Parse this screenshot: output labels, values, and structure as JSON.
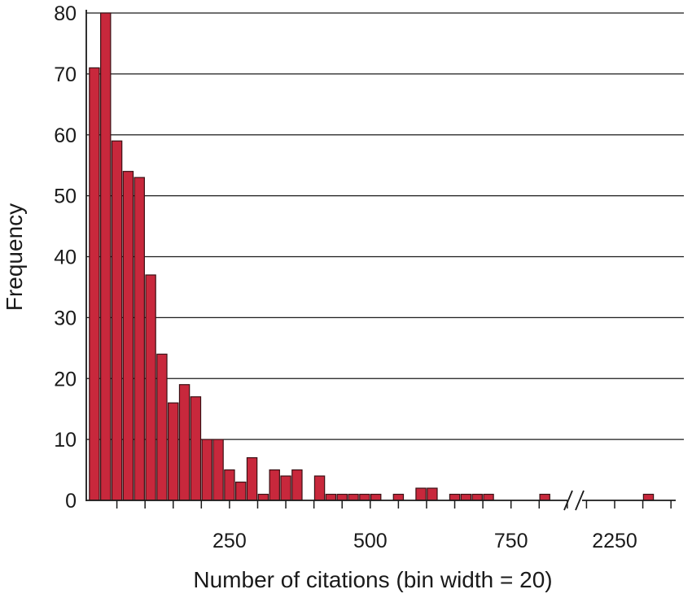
{
  "chart_data": {
    "type": "bar",
    "xlabel": "Number of citations (bin width = 20)",
    "ylabel": "Frequency",
    "bin_width": 20,
    "ylim": [
      0,
      80
    ],
    "yticks": [
      0,
      10,
      20,
      30,
      40,
      50,
      60,
      70,
      80
    ],
    "xticks": [
      250,
      500,
      750
    ],
    "axis_break_after": 850,
    "break_tick": 2250,
    "grid": "horizontal",
    "bars": [
      {
        "bin_start": 0,
        "value": 71
      },
      {
        "bin_start": 20,
        "value": 80
      },
      {
        "bin_start": 40,
        "value": 59
      },
      {
        "bin_start": 60,
        "value": 54
      },
      {
        "bin_start": 80,
        "value": 53
      },
      {
        "bin_start": 100,
        "value": 37
      },
      {
        "bin_start": 120,
        "value": 24
      },
      {
        "bin_start": 140,
        "value": 16
      },
      {
        "bin_start": 160,
        "value": 19
      },
      {
        "bin_start": 180,
        "value": 17
      },
      {
        "bin_start": 200,
        "value": 10
      },
      {
        "bin_start": 220,
        "value": 10
      },
      {
        "bin_start": 240,
        "value": 5
      },
      {
        "bin_start": 260,
        "value": 3
      },
      {
        "bin_start": 280,
        "value": 7
      },
      {
        "bin_start": 300,
        "value": 1
      },
      {
        "bin_start": 320,
        "value": 5
      },
      {
        "bin_start": 340,
        "value": 4
      },
      {
        "bin_start": 360,
        "value": 5
      },
      {
        "bin_start": 400,
        "value": 4
      },
      {
        "bin_start": 420,
        "value": 1
      },
      {
        "bin_start": 440,
        "value": 1
      },
      {
        "bin_start": 460,
        "value": 1
      },
      {
        "bin_start": 480,
        "value": 1
      },
      {
        "bin_start": 500,
        "value": 1
      },
      {
        "bin_start": 540,
        "value": 1
      },
      {
        "bin_start": 580,
        "value": 2
      },
      {
        "bin_start": 600,
        "value": 2
      },
      {
        "bin_start": 640,
        "value": 1
      },
      {
        "bin_start": 660,
        "value": 1
      },
      {
        "bin_start": 680,
        "value": 1
      },
      {
        "bin_start": 700,
        "value": 1
      },
      {
        "bin_start": 800,
        "value": 1
      },
      {
        "bin_start": 2300,
        "value": 1
      }
    ]
  }
}
